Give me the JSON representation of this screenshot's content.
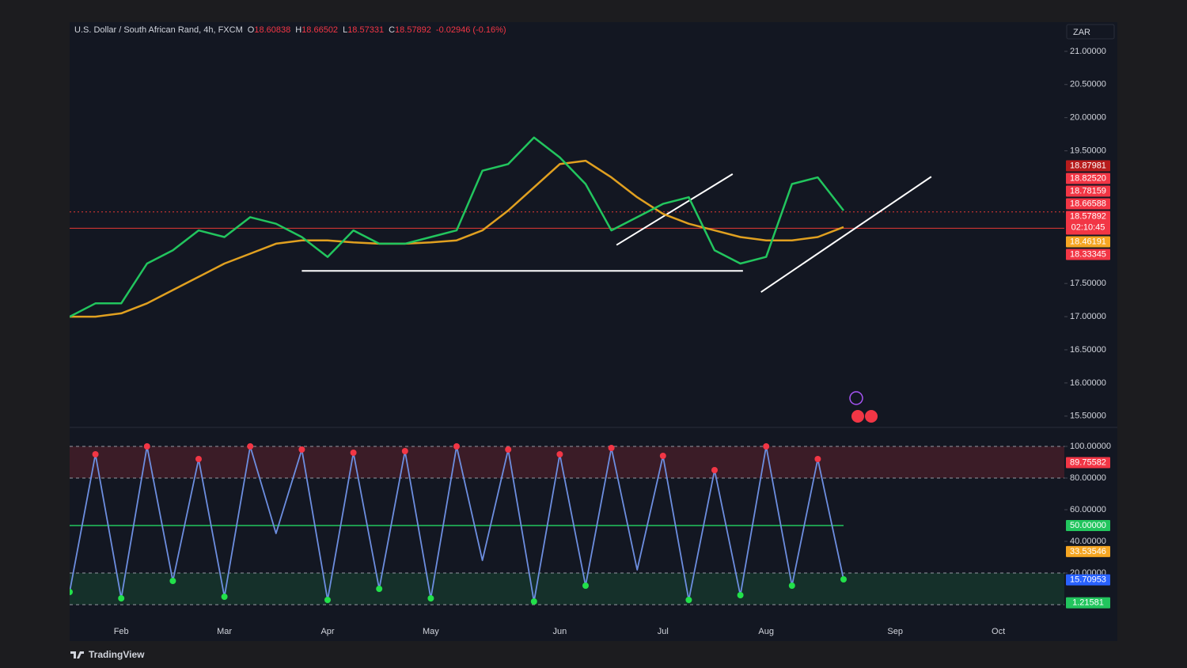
{
  "chart_data": {
    "type": "line",
    "title": "U.S. Dollar / South African Rand, 4h, FXCM",
    "ohlc": [
      {
        "key": "O",
        "value": "18.60838"
      },
      {
        "key": "H",
        "value": "18.66502"
      },
      {
        "key": "L",
        "value": "18.57331"
      },
      {
        "key": "C",
        "value": "18.57892"
      }
    ],
    "change": "-0.02946 (-0.16%)",
    "currency": "ZAR",
    "footer": "TradingView",
    "categories": [
      null,
      null,
      "Feb",
      null,
      null,
      null,
      "Mar",
      null,
      null,
      null,
      "Apr",
      null,
      null,
      null,
      "May",
      null,
      null,
      null,
      null,
      "Jun",
      null,
      null,
      null,
      "Jul",
      null,
      null,
      null,
      "Aug",
      null,
      null,
      null,
      null,
      "Sep",
      null,
      null,
      null,
      "Oct",
      null,
      null,
      null,
      null
    ],
    "panes": [
      {
        "values": [
          17.0,
          17.2,
          17.2,
          17.8,
          18.0,
          18.3,
          18.2,
          18.5,
          18.4,
          18.2,
          17.9,
          18.3,
          18.1,
          18.1,
          18.2,
          18.3,
          19.2,
          19.3,
          19.7,
          19.4,
          19.0,
          18.3,
          18.5,
          18.7,
          18.8,
          18.0,
          17.8,
          17.9,
          19.0,
          19.1,
          18.6,
          null,
          null,
          null,
          null,
          null,
          null,
          null,
          null,
          null,
          null
        ],
        "color": "#22c55e",
        "ma_values": [
          17.0,
          17.0,
          17.05,
          17.2,
          17.4,
          17.6,
          17.8,
          17.95,
          18.1,
          18.15,
          18.15,
          18.12,
          18.1,
          18.1,
          18.12,
          18.15,
          18.3,
          18.6,
          18.95,
          19.3,
          19.35,
          19.1,
          18.8,
          18.55,
          18.4,
          18.3,
          18.2,
          18.15,
          18.15,
          18.2,
          18.35,
          null,
          null,
          null,
          null,
          null,
          null,
          null,
          null,
          null,
          null
        ],
        "ma_color": "#e0a020",
        "ylim": [
          15.33,
          21.44
        ],
        "yticks": [
          {
            "value": 21,
            "label": "21.00000"
          },
          {
            "value": 20.5,
            "label": "20.50000"
          },
          {
            "value": 20,
            "label": "20.00000"
          },
          {
            "value": 19.5,
            "label": "19.50000"
          },
          {
            "value": 17.5,
            "label": "17.50000"
          },
          {
            "value": 17,
            "label": "17.00000"
          },
          {
            "value": 16.5,
            "label": "16.50000"
          },
          {
            "value": 16,
            "label": "16.00000"
          },
          {
            "value": 15.5,
            "label": "15.50000"
          }
        ],
        "hlines": [
          {
            "value": 18.33345,
            "color": "#e53935",
            "dashed": false
          },
          {
            "value": 18.57892,
            "color": "#e53935",
            "dashed": true
          }
        ],
        "trendlines": [
          {
            "x": [
              9,
              26.1
            ],
            "y": [
              17.69,
              17.69
            ],
            "color": "#ffffff"
          },
          {
            "x": [
              21.2,
              25.7
            ],
            "y": [
              18.08,
              19.15
            ],
            "color": "#ffffff"
          },
          {
            "x": [
              26.8,
              33.4
            ],
            "y": [
              17.37,
              19.11
            ],
            "color": "#ffffff"
          }
        ],
        "tags": [
          {
            "value": 18.87981,
            "label": "18.87981",
            "color": "#b71c1c"
          },
          {
            "value": 18.8252,
            "label": "18.82520",
            "color": "#f23645"
          },
          {
            "value": 18.78159,
            "label": "18.78159",
            "color": "#f23645"
          },
          {
            "value": 18.66588,
            "label": "18.66588",
            "color": "#f23645"
          },
          {
            "value": 18.57892,
            "label": "18.57892",
            "color": "#f23645",
            "countdown": "02:10:45"
          },
          {
            "value": 18.46191,
            "label": "18.46191",
            "color": "#f5a623"
          },
          {
            "value": 18.33345,
            "label": "18.33345",
            "color": "#f23645"
          }
        ]
      },
      {
        "values": [
          8,
          95,
          4,
          100,
          15,
          92,
          5,
          100,
          45,
          98,
          3,
          96,
          10,
          97,
          4,
          100,
          28,
          98,
          2,
          95,
          12,
          99,
          22,
          94,
          3,
          85,
          6,
          100,
          12,
          92,
          16,
          null,
          null,
          null,
          null,
          null,
          null,
          null,
          null,
          null,
          null
        ],
        "color": "#6d8ee0",
        "ylim": [
          -8,
          112
        ],
        "yticks": [
          {
            "value": 100,
            "label": "100.00000"
          },
          {
            "value": 80,
            "label": "80.00000"
          },
          {
            "value": 60,
            "label": "60.00000"
          },
          {
            "value": 40,
            "label": "40.00000"
          },
          {
            "value": 20,
            "label": "20.00000"
          }
        ],
        "bands": [
          {
            "range": [
              80,
              100
            ],
            "color": "rgba(242,54,69,0.18)"
          },
          {
            "range": [
              0,
              20
            ],
            "color": "rgba(34,197,94,0.15)"
          }
        ],
        "midline": 50,
        "tags": [
          {
            "value": 89.75582,
            "label": "89.75582",
            "color": "#f23645"
          },
          {
            "value": 50,
            "label": "50.00000",
            "color": "#22c55e"
          },
          {
            "value": 33.53546,
            "label": "33.53546",
            "color": "#f5a623"
          },
          {
            "value": 15.70953,
            "label": "15.70953",
            "color": "#2962ff"
          },
          {
            "value": 1.21581,
            "label": "1.21581",
            "color": "#22c55e"
          }
        ]
      }
    ]
  }
}
